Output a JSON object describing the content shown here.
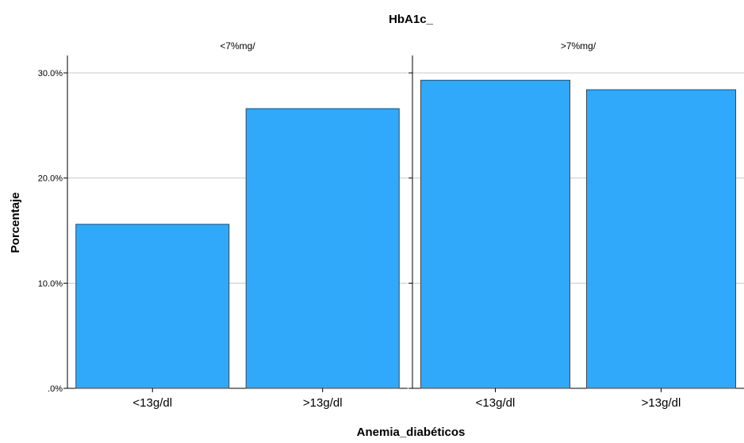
{
  "chart_data": {
    "type": "bar",
    "title": "HbA1c_",
    "xlabel": "Anemia_diabéticos",
    "ylabel": "Porcentaje",
    "ylim": [
      0,
      30
    ],
    "yticks": [
      0,
      10,
      20,
      30
    ],
    "ytick_labels": [
      ".0%",
      "10.0%",
      "20.0%",
      "30.0%"
    ],
    "grid": true,
    "bar_color": "#30a9fb",
    "categories": [
      "<13g/dl",
      ">13g/dl"
    ],
    "panels": [
      {
        "label": "<7%mg/",
        "values": [
          15.6,
          26.6
        ]
      },
      {
        "label": ">7%mg/",
        "values": [
          29.3,
          28.4
        ]
      }
    ]
  }
}
